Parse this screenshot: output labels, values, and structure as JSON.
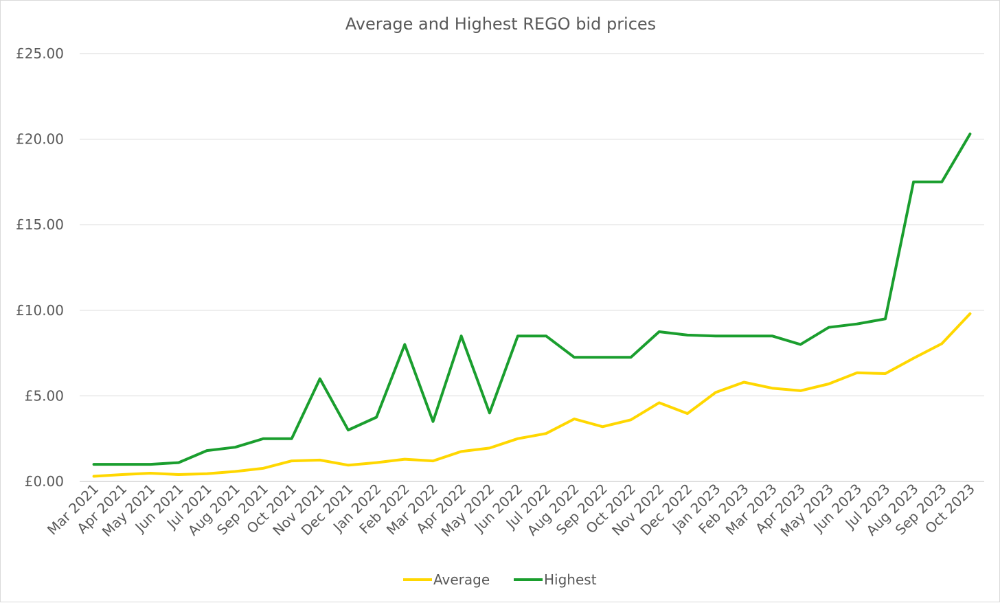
{
  "chart_data": {
    "type": "line",
    "title": "Average and Highest REGO bid prices",
    "xlabel": "",
    "ylabel": "",
    "categories": [
      "Mar 2021",
      "Apr 2021",
      "May 2021",
      "Jun 2021",
      "Jul 2021",
      "Aug 2021",
      "Sep 2021",
      "Oct 2021",
      "Nov 2021",
      "Dec 2021",
      "Jan 2022",
      "Feb 2022",
      "Mar 2022",
      "Apr 2022",
      "May 2022",
      "Jun 2022",
      "Jul 2022",
      "Aug 2022",
      "Sep 2022",
      "Oct 2022",
      "Nov 2022",
      "Dec 2022",
      "Jan 2023",
      "Feb 2023",
      "Mar 2023",
      "Apr 2023",
      "May 2023",
      "Jun 2023",
      "Jul 2023",
      "Aug 2023",
      "Sep 2023",
      "Oct 2023"
    ],
    "series": [
      {
        "name": "Average",
        "color": "#FFD700",
        "values": [
          0.3,
          0.4,
          0.48,
          0.4,
          0.45,
          0.58,
          0.77,
          1.2,
          1.25,
          0.95,
          1.1,
          1.3,
          1.2,
          1.75,
          1.95,
          2.5,
          2.8,
          3.65,
          3.2,
          3.6,
          4.6,
          3.97,
          5.2,
          5.8,
          5.45,
          5.3,
          5.7,
          6.35,
          6.3,
          7.2,
          8.05,
          9.8
        ]
      },
      {
        "name": "Highest",
        "color": "#1A9E2E",
        "values": [
          1.0,
          1.0,
          1.0,
          1.1,
          1.8,
          2.0,
          2.5,
          2.5,
          6.0,
          3.0,
          3.75,
          8.0,
          3.5,
          8.5,
          4.0,
          8.5,
          8.5,
          7.25,
          7.25,
          7.25,
          8.75,
          8.55,
          8.5,
          8.5,
          8.5,
          8.0,
          9.0,
          9.2,
          9.5,
          17.5,
          17.5,
          20.3
        ]
      }
    ],
    "ylim": [
      0,
      25
    ],
    "yticks": [
      0,
      5,
      10,
      15,
      20,
      25
    ],
    "ytick_labels": [
      "£0.00",
      "£5.00",
      "£10.00",
      "£15.00",
      "£20.00",
      "£25.00"
    ],
    "grid": "horizontal",
    "legend_position": "bottom",
    "gridline_color": "#D9D9D9",
    "axis_color": "#BFBFBF",
    "text_color": "#595959"
  }
}
